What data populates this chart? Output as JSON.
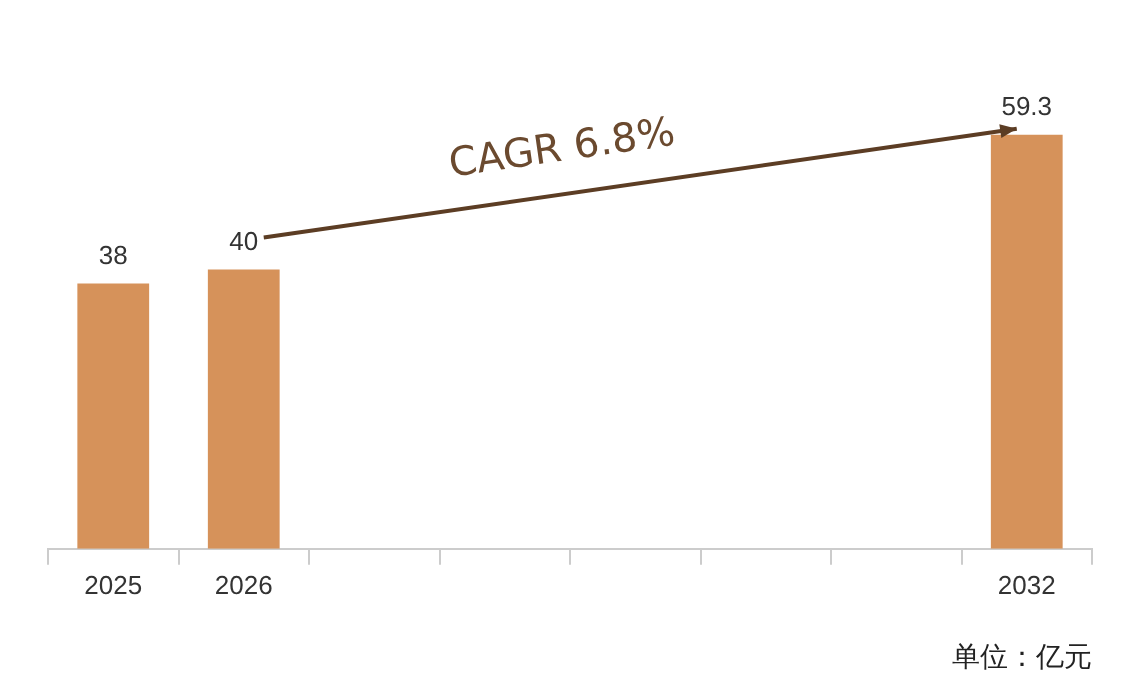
{
  "chart_data": {
    "type": "bar",
    "categories": [
      "2025",
      "2026",
      null,
      null,
      null,
      null,
      null,
      "2032"
    ],
    "values": [
      38,
      40,
      null,
      null,
      null,
      null,
      null,
      59.3
    ],
    "color": "#d6925a",
    "data_labels": true,
    "grid": false,
    "legend": false,
    "annotations": [
      "CAGR 6.8%",
      "单位：亿元"
    ]
  }
}
